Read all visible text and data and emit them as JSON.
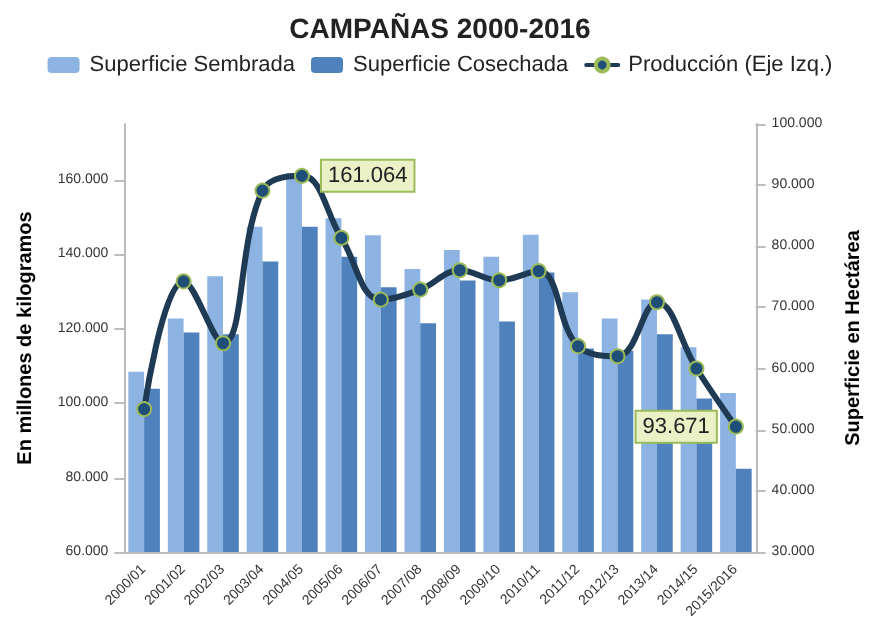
{
  "chart_data": {
    "type": "bar",
    "title": "CAMPAÑAS 2000-2016",
    "categories": [
      "2000/01",
      "2001/02",
      "2002/03",
      "2003/04",
      "2004/05",
      "2005/06",
      "2006/07",
      "2007/08",
      "2008/09",
      "2009/10",
      "2010/11",
      "2011/12",
      "2012/13",
      "2013/14",
      "2014/15",
      "2015/2016"
    ],
    "series": [
      {
        "name": "Superficie Sembrada",
        "axis": "y2",
        "color": "#8db3e2",
        "values": [
          59500,
          68200,
          75100,
          83200,
          92000,
          84600,
          81800,
          76300,
          79400,
          78300,
          81900,
          72500,
          68200,
          71300,
          63500,
          56000
        ]
      },
      {
        "name": "Superficie Cosechada",
        "axis": "y2",
        "color": "#4f81bd",
        "values": [
          56700,
          65900,
          65600,
          77500,
          83200,
          78300,
          73300,
          67400,
          74400,
          67700,
          75700,
          63300,
          62900,
          65600,
          55100,
          43600
        ]
      },
      {
        "name": "Producción (Eje Izq.)",
        "type": "line",
        "color": "#1f3a54",
        "values": [
          98400,
          132700,
          116100,
          157100,
          161064,
          144400,
          127800,
          130500,
          135700,
          133000,
          135500,
          115300,
          112600,
          127100,
          109300,
          93671
        ]
      }
    ],
    "ylabel": "En millones de kilogramos",
    "y2label": "Superficie en Hectárea",
    "ylim": [
      60000,
      175000
    ],
    "yticks": [
      {
        "value": 60000,
        "label": "60.000"
      },
      {
        "value": 80000,
        "label": "80.000"
      },
      {
        "value": 100000,
        "label": "100.000"
      },
      {
        "value": 120000,
        "label": "120.000"
      },
      {
        "value": 140000,
        "label": "140.000"
      },
      {
        "value": 160000,
        "label": "160.000"
      }
    ],
    "y2lim": [
      30000,
      100000
    ],
    "y2ticks": [
      {
        "value": 30000,
        "label": "30.000"
      },
      {
        "value": 40000,
        "label": "40.000"
      },
      {
        "value": 50000,
        "label": "50.000"
      },
      {
        "value": 60000,
        "label": "60.000"
      },
      {
        "value": 70000,
        "label": "70.000"
      },
      {
        "value": 80000,
        "label": "80.000"
      },
      {
        "value": 90000,
        "label": "90.000"
      },
      {
        "value": 100000,
        "label": "100.000"
      }
    ],
    "annotations": [
      {
        "text": "161.064",
        "x": "2004/05",
        "y": 161064
      },
      {
        "text": "93.671",
        "x": "2015/2016",
        "y": 93671
      }
    ],
    "marker": "circle",
    "grid": false,
    "legend": "top"
  }
}
